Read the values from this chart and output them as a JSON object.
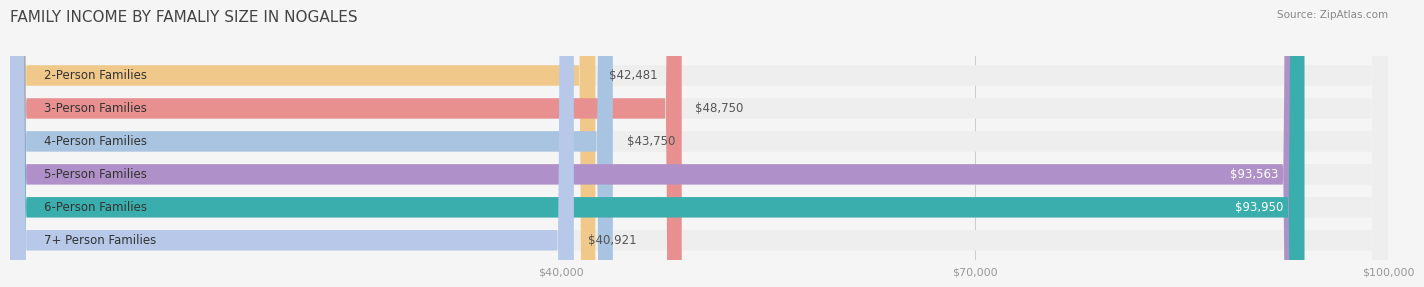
{
  "title": "FAMILY INCOME BY FAMALIY SIZE IN NOGALES",
  "source": "Source: ZipAtlas.com",
  "categories": [
    "2-Person Families",
    "3-Person Families",
    "4-Person Families",
    "5-Person Families",
    "6-Person Families",
    "7+ Person Families"
  ],
  "values": [
    42481,
    48750,
    43750,
    93563,
    93950,
    40921
  ],
  "bar_colors": [
    "#f0c98a",
    "#e89090",
    "#a8c4e0",
    "#b090c8",
    "#3aadad",
    "#b8c8e8"
  ],
  "value_labels": [
    "$42,481",
    "$48,750",
    "$43,750",
    "$93,563",
    "$93,950",
    "$40,921"
  ],
  "label_colors": [
    "#555555",
    "#555555",
    "#555555",
    "#ffffff",
    "#ffffff",
    "#555555"
  ],
  "bg_color": "#f5f5f5",
  "bar_bg_color": "#eeeeee",
  "xmin": 0,
  "xmax": 100000,
  "xticks": [
    40000,
    70000,
    100000
  ],
  "xtick_labels": [
    "$40,000",
    "$70,000",
    "$100,000"
  ],
  "title_fontsize": 11,
  "label_fontsize": 8.5,
  "value_fontsize": 8.5,
  "bar_height": 0.62,
  "bar_gap": 0.05
}
